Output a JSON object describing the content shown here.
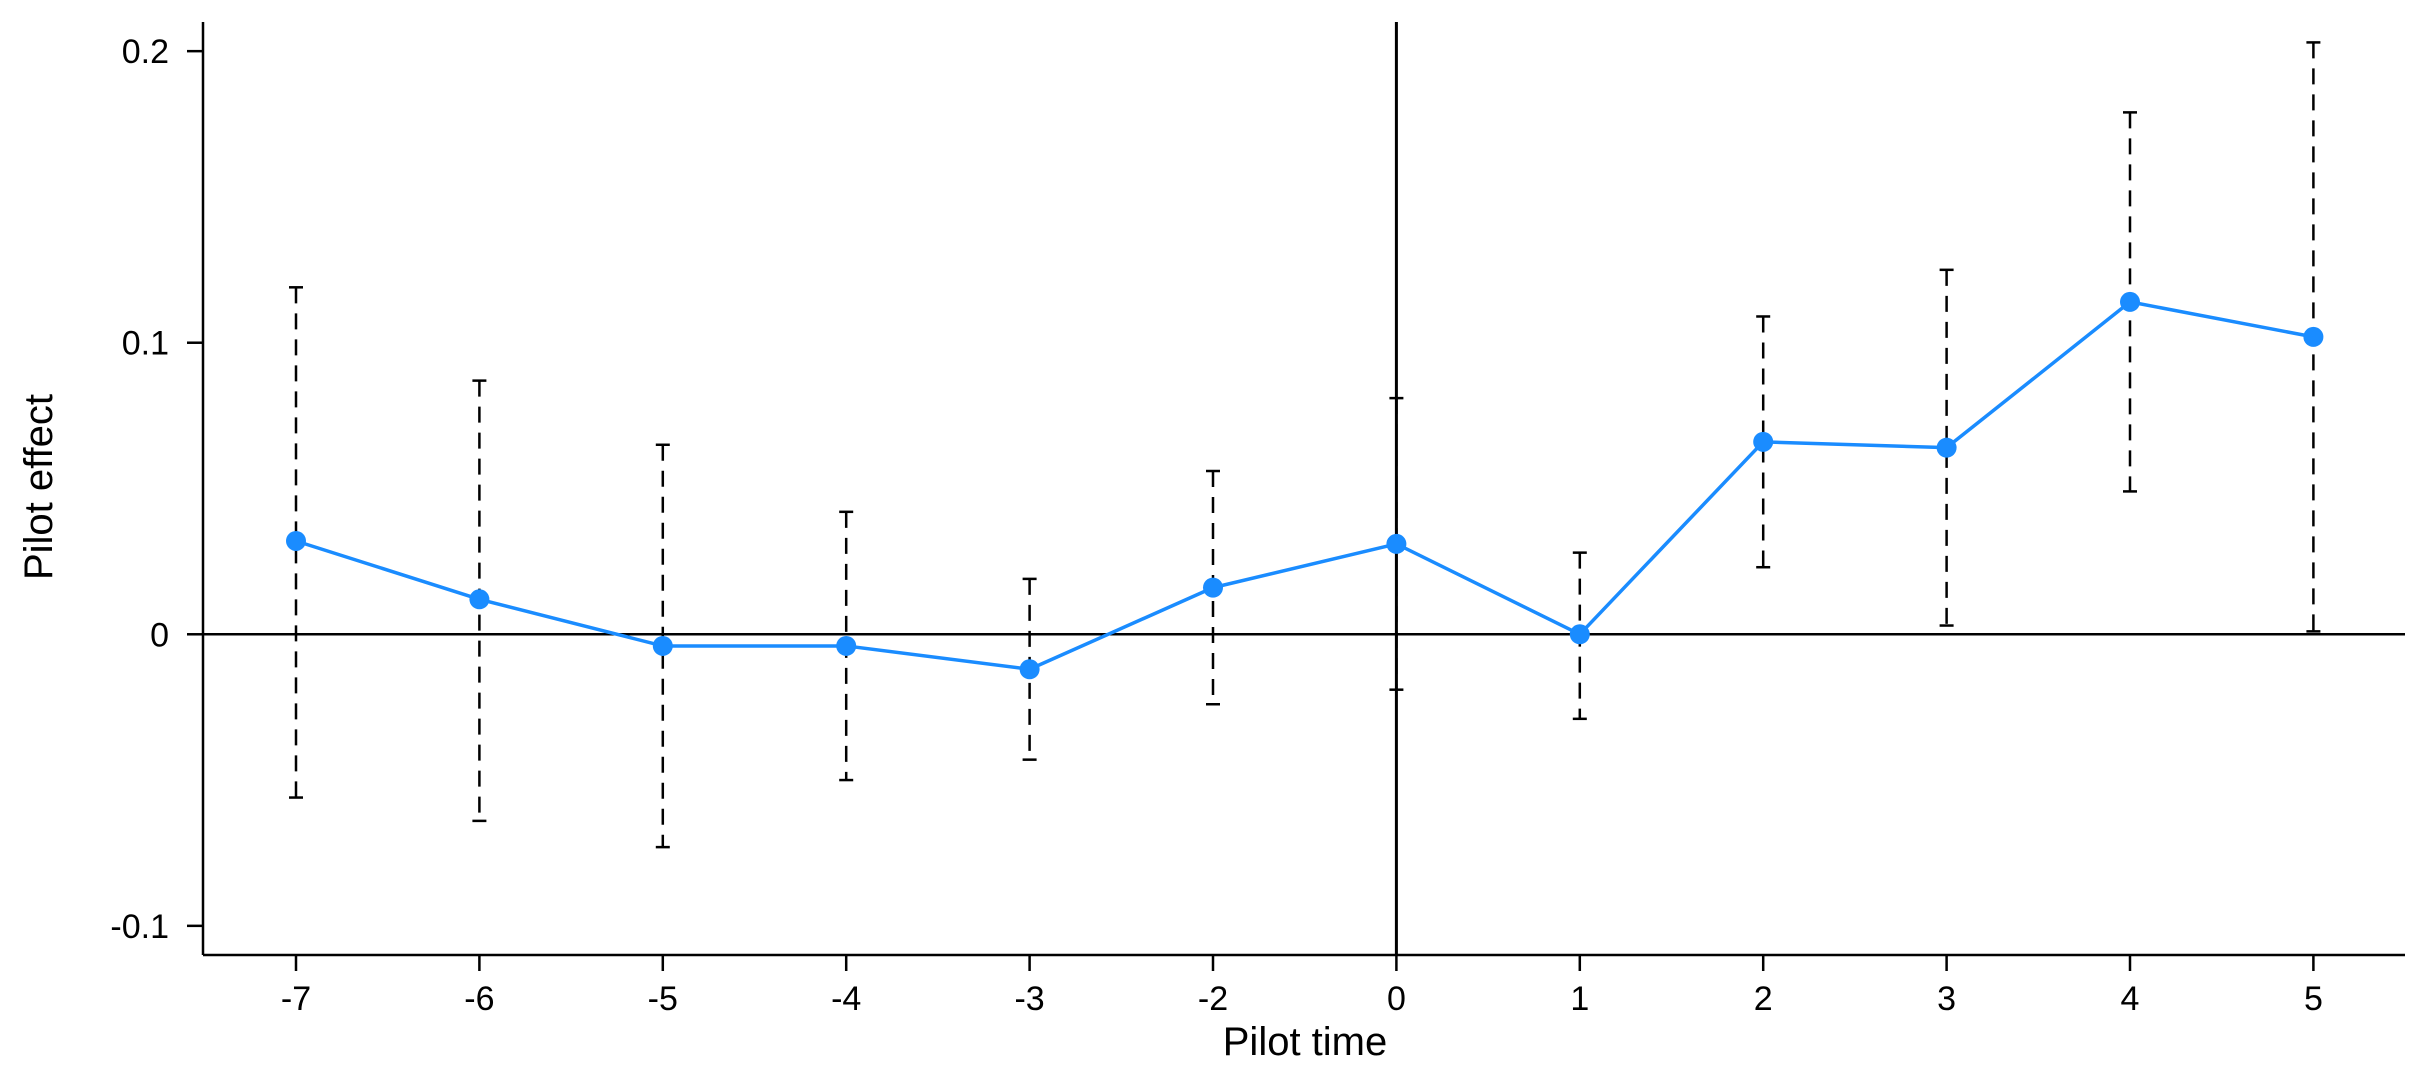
{
  "chart_data": {
    "type": "line",
    "title": "",
    "xlabel": "Pilot time",
    "ylabel": "Pilot effect",
    "categories": [
      "-7",
      "-6",
      "-5",
      "-4",
      "-3",
      "-2",
      "0",
      "1",
      "2",
      "3",
      "4",
      "5"
    ],
    "ylim": [
      -0.11,
      0.21
    ],
    "yticks": [
      {
        "value": -0.1,
        "label": "-0.1"
      },
      {
        "value": 0,
        "label": "0"
      },
      {
        "value": 0.1,
        "label": "0.1"
      },
      {
        "value": 0.2,
        "label": "0.2"
      }
    ],
    "reference_lines": {
      "y": 0,
      "x_category": "0"
    },
    "grid": false,
    "series": [
      {
        "values": [
          0.032,
          0.012,
          -0.004,
          -0.004,
          -0.012,
          0.016,
          0.031,
          0.0,
          0.066,
          0.064,
          0.114,
          0.102
        ],
        "lower": [
          -0.056,
          -0.064,
          -0.073,
          -0.05,
          -0.043,
          -0.024,
          -0.019,
          -0.029,
          0.023,
          0.003,
          0.049,
          0.001
        ],
        "upper": [
          0.119,
          0.087,
          0.065,
          0.042,
          0.019,
          0.056,
          0.081,
          0.028,
          0.109,
          0.125,
          0.179,
          0.203
        ],
        "color": "#1a8cff",
        "ci_color": "#000000",
        "ci_style": "dashed"
      }
    ]
  }
}
